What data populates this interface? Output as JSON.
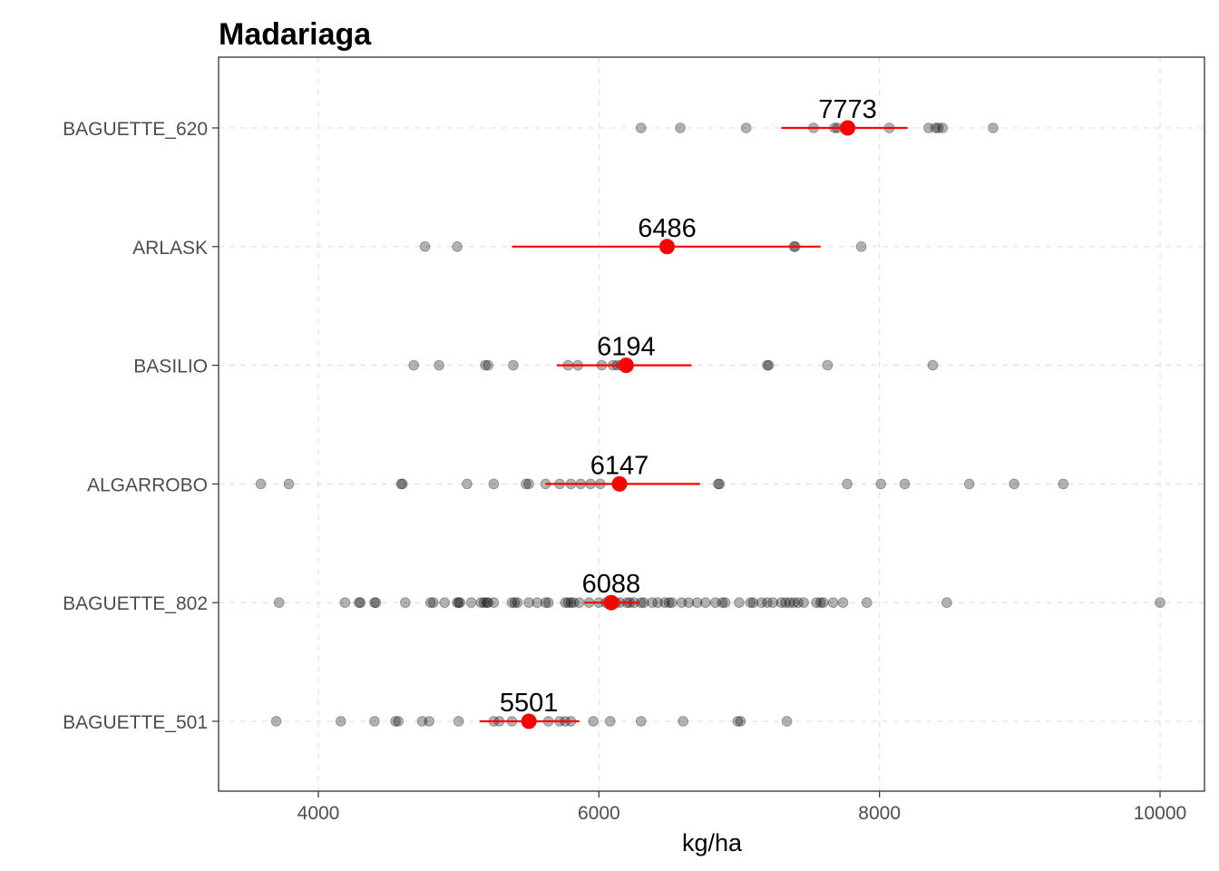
{
  "chart_data": {
    "type": "scatter",
    "title": "Madariaga",
    "xlabel": "kg/ha",
    "ylabel": "",
    "xlim": [
      3300,
      10150
    ],
    "xticks": [
      4000,
      6000,
      8000,
      10000
    ],
    "grid": true,
    "colors": {
      "point": "#000000",
      "mean": "#ff0000",
      "interval": "#ff0000",
      "grid": "#dedede",
      "frame": "#333333"
    },
    "categories": [
      "BAGUETTE_620",
      "ARLASK",
      "BASILIO",
      "ALGARROBO",
      "BAGUETTE_802",
      "BAGUETTE_501"
    ],
    "series": [
      {
        "category": "BAGUETTE_620",
        "mean": 7773,
        "mean_label": "7773",
        "interval": [
          7300,
          8200
        ],
        "points": [
          6300,
          6580,
          7050,
          7530,
          7680,
          7700,
          8070,
          8350,
          8400,
          8420,
          8450,
          8810
        ]
      },
      {
        "category": "ARLASK",
        "mean": 6486,
        "mean_label": "6486",
        "interval": [
          5380,
          7580
        ],
        "points": [
          4760,
          4990,
          7390,
          7400,
          7870
        ]
      },
      {
        "category": "BASILIO",
        "mean": 6194,
        "mean_label": "6194",
        "interval": [
          5700,
          6660
        ],
        "points": [
          4680,
          4860,
          5190,
          5210,
          5390,
          5780,
          5850,
          6020,
          6100,
          6130,
          6160,
          7200,
          7210,
          7630,
          8380
        ]
      },
      {
        "category": "ALGARROBO",
        "mean": 6147,
        "mean_label": "6147",
        "interval": [
          5620,
          6720
        ],
        "points": [
          3590,
          3790,
          4590,
          4600,
          5060,
          5250,
          5480,
          5500,
          5620,
          5720,
          5800,
          5870,
          5940,
          6010,
          6850,
          6860,
          7770,
          8010,
          8180,
          8640,
          8960,
          9310
        ]
      },
      {
        "category": "BAGUETTE_802",
        "mean": 6088,
        "mean_label": "6088",
        "interval": [
          5900,
          6280
        ],
        "points": [
          3720,
          4190,
          4290,
          4300,
          4400,
          4410,
          4620,
          4800,
          4820,
          4900,
          4990,
          5000,
          5010,
          5090,
          5160,
          5180,
          5200,
          5210,
          5250,
          5380,
          5400,
          5420,
          5500,
          5560,
          5620,
          5640,
          5760,
          5780,
          5800,
          5820,
          5860,
          5930,
          6000,
          6050,
          6100,
          6120,
          6150,
          6200,
          6220,
          6250,
          6300,
          6320,
          6380,
          6420,
          6470,
          6500,
          6520,
          6590,
          6640,
          6700,
          6760,
          6830,
          6880,
          6900,
          7000,
          7080,
          7100,
          7160,
          7200,
          7240,
          7300,
          7330,
          7360,
          7390,
          7420,
          7460,
          7550,
          7580,
          7600,
          7670,
          7740,
          7910,
          8480,
          10000
        ]
      },
      {
        "category": "BAGUETTE_501",
        "mean": 5501,
        "mean_label": "5501",
        "interval": [
          5150,
          5860
        ],
        "points": [
          3700,
          4160,
          4400,
          4550,
          4570,
          4740,
          4790,
          5000,
          5250,
          5290,
          5380,
          5640,
          5720,
          5760,
          5800,
          5960,
          6080,
          6300,
          6600,
          6990,
          7010,
          7340
        ]
      }
    ]
  }
}
